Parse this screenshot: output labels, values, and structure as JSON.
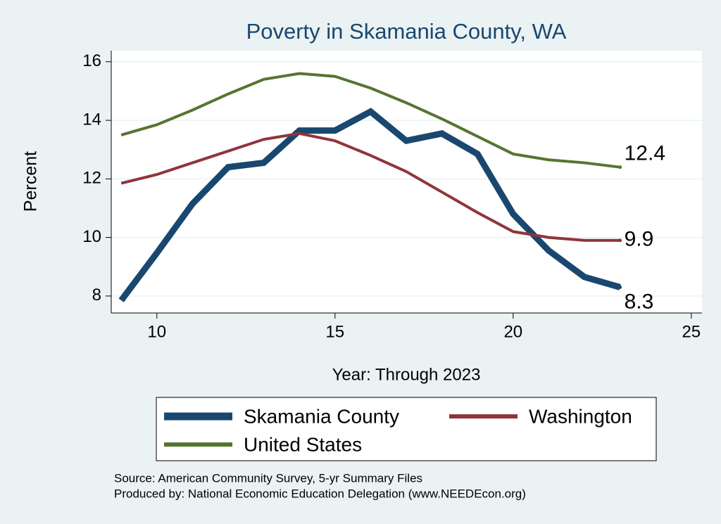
{
  "chart_data": {
    "type": "line",
    "title": "Poverty in Skamania County, WA",
    "x_label": "Year: Through 2023",
    "y_label": "Percent",
    "x": [
      9,
      10,
      11,
      12,
      13,
      14,
      15,
      16,
      17,
      18,
      19,
      20,
      21,
      22,
      23
    ],
    "series": [
      {
        "name": "Skamania County",
        "color": "#1a476f",
        "values": [
          7.85,
          9.47,
          11.15,
          12.4,
          12.55,
          13.65,
          13.65,
          14.3,
          13.3,
          13.55,
          12.85,
          10.8,
          9.55,
          8.65,
          8.3
        ],
        "value_labels": [
          null,
          null,
          null,
          null,
          null,
          null,
          null,
          null,
          null,
          null,
          null,
          null,
          null,
          null,
          "8.3"
        ]
      },
      {
        "name": "Washington",
        "color": "#90353b",
        "values": [
          11.85,
          12.15,
          12.55,
          12.95,
          13.35,
          13.55,
          13.3,
          12.8,
          12.25,
          11.55,
          10.85,
          10.2,
          10.0,
          9.9,
          9.9
        ],
        "value_labels": [
          null,
          null,
          null,
          null,
          null,
          null,
          null,
          null,
          null,
          null,
          null,
          null,
          null,
          null,
          "9.9"
        ]
      },
      {
        "name": "United States",
        "color": "#55752f",
        "values": [
          13.5,
          13.85,
          14.35,
          14.9,
          15.4,
          15.6,
          15.5,
          15.1,
          14.6,
          14.05,
          13.45,
          12.85,
          12.65,
          12.55,
          12.4
        ],
        "value_labels": [
          null,
          null,
          null,
          null,
          null,
          null,
          null,
          null,
          null,
          null,
          null,
          null,
          null,
          null,
          "12.4"
        ]
      }
    ],
    "xlim": [
      8.72,
      25.3
    ],
    "xticks": [
      10,
      15,
      20,
      25
    ],
    "ylim": [
      7.42,
      16.38
    ],
    "yticks": [
      8,
      10,
      12,
      14,
      16
    ],
    "grid": true,
    "notes": [
      "Source: American Community Survey, 5-yr Summary Files",
      "Produced by: National Economic Education Delegation (www.NEEDEcon.org)"
    ]
  }
}
